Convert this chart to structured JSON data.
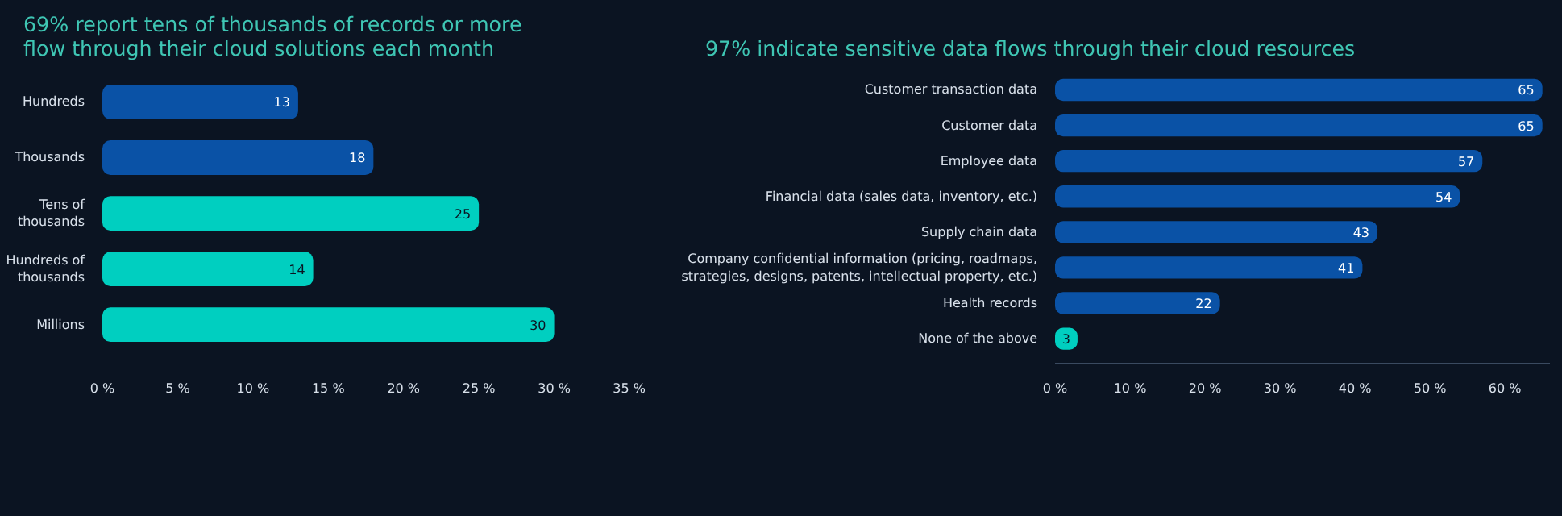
{
  "chart_data": [
    {
      "type": "bar",
      "orientation": "horizontal",
      "title": "69% report tens of thousands of records or more flow through their cloud solutions each month",
      "categories": [
        "Hundreds",
        "Thousands",
        "Tens of thousands",
        "Hundreds of thousands",
        "Millions"
      ],
      "values": [
        13,
        18,
        25,
        14,
        30
      ],
      "colors": [
        "#0a52a6",
        "#0a52a6",
        "#00cfc0",
        "#00cfc0",
        "#00cfc0"
      ],
      "data_labels": true,
      "xlim": [
        0,
        35
      ],
      "xticks": [
        {
          "value": 0,
          "label": "0 %"
        },
        {
          "value": 5,
          "label": "5 %"
        },
        {
          "value": 10,
          "label": "10 %"
        },
        {
          "value": 15,
          "label": "15 %"
        },
        {
          "value": 20,
          "label": "20 %"
        },
        {
          "value": 25,
          "label": "25 %"
        },
        {
          "value": 30,
          "label": "30 %"
        },
        {
          "value": 35,
          "label": "35 %"
        }
      ],
      "grid": false
    },
    {
      "type": "bar",
      "orientation": "horizontal",
      "title": "97% indicate sensitive data flows through their cloud resources",
      "categories": [
        "Customer transaction data",
        "Customer data",
        "Employee data",
        "Financial data (sales data, inventory, etc.)",
        "Supply chain data",
        "Company confidential information (pricing, roadmaps, strategies, designs, patents, intellectual property, etc.)",
        "Health records",
        "None of the above"
      ],
      "values": [
        65,
        65,
        57,
        54,
        43,
        41,
        22,
        3
      ],
      "colors": [
        "#0a52a6",
        "#0a52a6",
        "#0a52a6",
        "#0a52a6",
        "#0a52a6",
        "#0a52a6",
        "#0a52a6",
        "#00cfc0"
      ],
      "data_labels": true,
      "xlim": [
        0,
        66
      ],
      "xticks": [
        {
          "value": 0,
          "label": "0 %"
        },
        {
          "value": 10,
          "label": "10 %"
        },
        {
          "value": 20,
          "label": "20 %"
        },
        {
          "value": 30,
          "label": "30 %"
        },
        {
          "value": 40,
          "label": "40 %"
        },
        {
          "value": 50,
          "label": "50 %"
        },
        {
          "value": 60,
          "label": "60 %"
        }
      ],
      "grid": false
    }
  ]
}
